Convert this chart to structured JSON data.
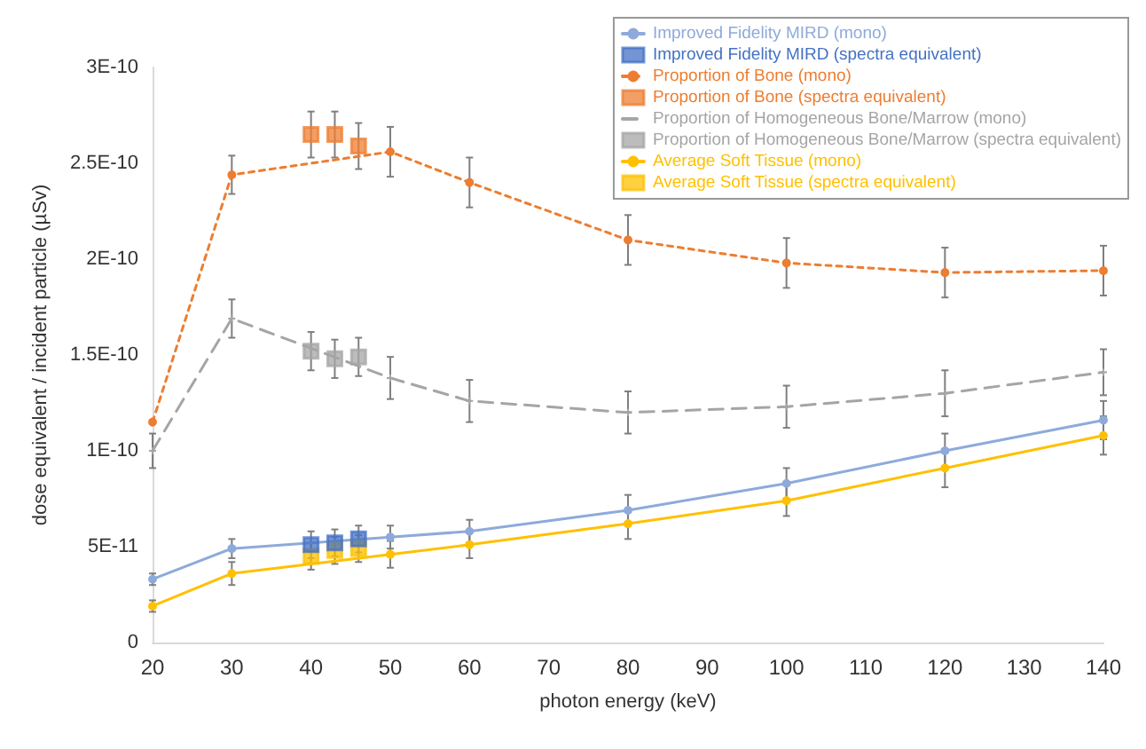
{
  "chart_data": {
    "type": "line",
    "xlabel": "photon energy (keV)",
    "ylabel": "dose equivalent / incident particle (µSv)",
    "xlim": [
      20,
      140
    ],
    "xticks": [
      20,
      30,
      40,
      50,
      60,
      70,
      80,
      90,
      100,
      110,
      120,
      130,
      140
    ],
    "ylim": [
      0,
      3e-10
    ],
    "yticks": [
      0,
      {
        "value": 5e-11,
        "label": "5E-11"
      },
      {
        "value": 1e-10,
        "label": "1E-10"
      },
      {
        "value": 1.5e-10,
        "label": "1.5E-10"
      },
      {
        "value": 2e-10,
        "label": "2E-10"
      },
      {
        "value": 2.5e-10,
        "label": "2.5E-10"
      },
      {
        "value": 3e-10,
        "label": "3E-10"
      }
    ],
    "grid": false,
    "legend": "top right",
    "series": [
      {
        "name": "Improved Fidelity MIRD (mono)",
        "color": "#8eaadb",
        "marker": "circle",
        "line_style": "solid",
        "x": [
          20,
          30,
          50,
          60,
          80,
          100,
          120,
          140
        ],
        "values": [
          3.3e-11,
          4.9e-11,
          5.5e-11,
          5.8e-11,
          6.9e-11,
          8.3e-11,
          1e-10,
          1.16e-10
        ],
        "errors": [
          3e-12,
          5e-12,
          6e-12,
          6e-12,
          8e-12,
          8e-12,
          9e-12,
          1e-11
        ]
      },
      {
        "name": "Improved Fidelity MIRD (spectra equivalent)",
        "type": "scatter",
        "color": "#4472c4",
        "marker": "square",
        "x": [
          40,
          43,
          46
        ],
        "values": [
          5.1e-11,
          5.2e-11,
          5.4e-11
        ],
        "errors": [
          7e-12,
          7e-12,
          7e-12
        ]
      },
      {
        "name": "Proportion of Bone (mono)",
        "color": "#ed7d31",
        "marker": "circle",
        "line_style": "dotted",
        "x": [
          20,
          30,
          50,
          60,
          80,
          100,
          120,
          140
        ],
        "values": [
          1.15e-10,
          2.44e-10,
          2.56e-10,
          2.4e-10,
          2.1e-10,
          1.98e-10,
          1.93e-10,
          1.94e-10
        ],
        "errors": [
          null,
          1e-11,
          1.3e-11,
          1.3e-11,
          1.3e-11,
          1.3e-11,
          1.3e-11,
          1.3e-11
        ]
      },
      {
        "name": "Proportion of Bone (spectra equivalent)",
        "type": "scatter",
        "color": "#ed7d31",
        "marker": "square",
        "x": [
          40,
          43,
          46
        ],
        "values": [
          2.65e-10,
          2.65e-10,
          2.59e-10
        ],
        "errors": [
          1.2e-11,
          1.2e-11,
          1.2e-11
        ]
      },
      {
        "name": "Proportion of Homogeneous Bone/Marrow (mono)",
        "color": "#a5a5a5",
        "marker": "cross",
        "line_style": "dashed",
        "x": [
          20,
          30,
          50,
          60,
          80,
          100,
          120,
          140
        ],
        "values": [
          1e-10,
          1.69e-10,
          1.38e-10,
          1.26e-10,
          1.2e-10,
          1.23e-10,
          1.3e-10,
          1.41e-10
        ],
        "errors": [
          9e-12,
          1e-11,
          1.1e-11,
          1.1e-11,
          1.1e-11,
          1.1e-11,
          1.2e-11,
          1.2e-11
        ]
      },
      {
        "name": "Proportion of Homogeneous Bone/Marrow (spectra equivalent)",
        "type": "scatter",
        "color": "#a5a5a5",
        "marker": "square",
        "x": [
          40,
          43,
          46
        ],
        "values": [
          1.52e-10,
          1.48e-10,
          1.49e-10
        ],
        "errors": [
          1e-11,
          1e-11,
          1e-11
        ]
      },
      {
        "name": "Average Soft Tissue (mono)",
        "color": "#ffc000",
        "marker": "circle",
        "line_style": "solid",
        "x": [
          20,
          30,
          50,
          60,
          80,
          100,
          120,
          140
        ],
        "values": [
          1.9e-11,
          3.6e-11,
          4.6e-11,
          5.1e-11,
          6.2e-11,
          7.4e-11,
          9.1e-11,
          1.08e-10
        ],
        "errors": [
          3e-12,
          6e-12,
          7e-12,
          7e-12,
          8e-12,
          8e-12,
          1e-11,
          1e-11
        ]
      },
      {
        "name": "Average Soft Tissue (spectra equivalent)",
        "type": "scatter",
        "color": "#ffc000",
        "marker": "square",
        "x": [
          40,
          43,
          46
        ],
        "values": [
          4.5e-11,
          4.8e-11,
          4.9e-11
        ],
        "errors": [
          7e-12,
          7e-12,
          7e-12
        ]
      }
    ]
  }
}
